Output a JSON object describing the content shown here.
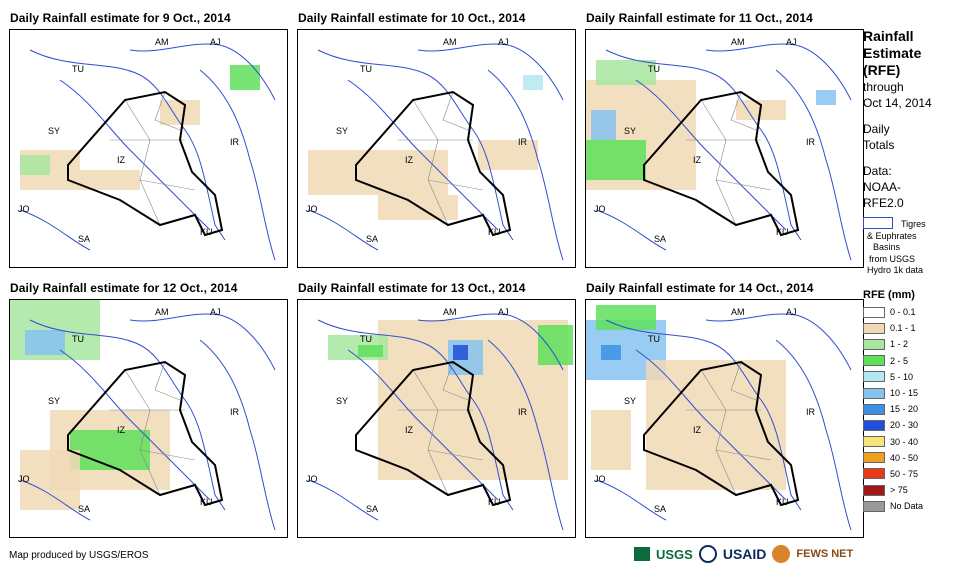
{
  "panels": [
    {
      "title": "Daily Rainfall estimate for 9 Oct., 2014"
    },
    {
      "title": "Daily Rainfall estimate for 10 Oct., 2014"
    },
    {
      "title": "Daily Rainfall estimate for 11 Oct., 2014"
    },
    {
      "title": "Daily Rainfall estimate for 12 Oct., 2014"
    },
    {
      "title": "Daily Rainfall estimate for 13 Oct., 2014"
    },
    {
      "title": "Daily Rainfall estimate for 14 Oct., 2014"
    }
  ],
  "country_labels": {
    "AM": "AM",
    "AJ": "AJ",
    "TU": "TU",
    "SY": "SY",
    "IZ": "IZ",
    "IR": "IR",
    "JO": "JO",
    "SA": "SA",
    "KU": "KU"
  },
  "sidebar": {
    "title_line1": "Rainfall",
    "title_line2": "Estimate",
    "title_line3": "(RFE)",
    "through_line1": "through",
    "through_line2": "Oct 14, 2014",
    "daily_line1": "Daily",
    "daily_line2": "Totals",
    "data_line1": "Data:",
    "data_line2": "NOAA-",
    "data_line3": "RFE2.0",
    "basin_line1": "Tigres",
    "basin_line2": "& Euphrates",
    "basin_line3": "Basins",
    "basin_line4": "from USGS",
    "basin_line5": "Hydro 1k data",
    "legend_title": "RFE (mm)",
    "legend": [
      {
        "label": "0 - 0.1",
        "color": "#ffffff"
      },
      {
        "label": "0.1 - 1",
        "color": "#f0d9b5"
      },
      {
        "label": "1 - 2",
        "color": "#a8e6a0"
      },
      {
        "label": "2 - 5",
        "color": "#5ee05a"
      },
      {
        "label": "5 - 10",
        "color": "#b4e8f0"
      },
      {
        "label": "10 - 15",
        "color": "#86c3f0"
      },
      {
        "label": "15 - 20",
        "color": "#3d8fe8"
      },
      {
        "label": "20 - 30",
        "color": "#1f4fd8"
      },
      {
        "label": "30 - 40",
        "color": "#f8e27a"
      },
      {
        "label": "40 - 50",
        "color": "#f0a020"
      },
      {
        "label": "50 - 75",
        "color": "#e83818"
      },
      {
        "label": "> 75",
        "color": "#a01818"
      },
      {
        "label": "No Data",
        "color": "#999999"
      }
    ]
  },
  "footer": "Map produced by USGS/EROS",
  "logos": {
    "usgs": "USGS",
    "usaid": "USAID",
    "fews": "FEWS NET"
  }
}
